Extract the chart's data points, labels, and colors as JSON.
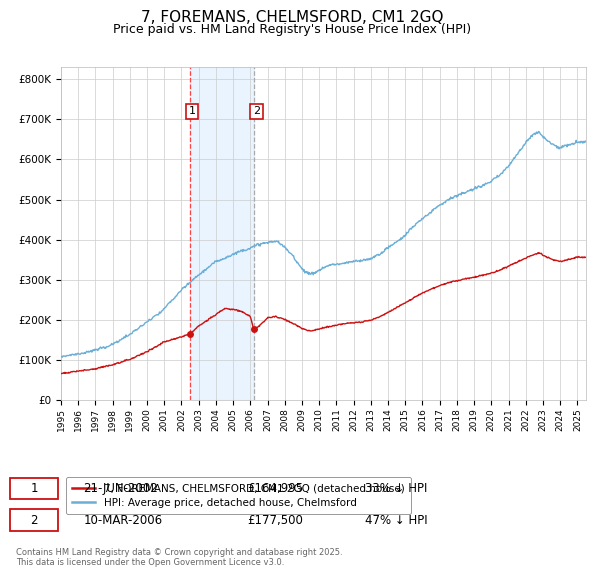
{
  "title": "7, FOREMANS, CHELMSFORD, CM1 2GQ",
  "subtitle": "Price paid vs. HM Land Registry's House Price Index (HPI)",
  "title_fontsize": 11,
  "subtitle_fontsize": 9,
  "ylabel_ticks": [
    "£0",
    "£100K",
    "£200K",
    "£300K",
    "£400K",
    "£500K",
    "£600K",
    "£700K",
    "£800K"
  ],
  "ytick_values": [
    0,
    100000,
    200000,
    300000,
    400000,
    500000,
    600000,
    700000,
    800000
  ],
  "ylim": [
    0,
    830000
  ],
  "xlim_start": 1995.0,
  "xlim_end": 2025.5,
  "xticks": [
    1995,
    1996,
    1997,
    1998,
    1999,
    2000,
    2001,
    2002,
    2003,
    2004,
    2005,
    2006,
    2007,
    2008,
    2009,
    2010,
    2011,
    2012,
    2013,
    2014,
    2015,
    2016,
    2017,
    2018,
    2019,
    2020,
    2021,
    2022,
    2023,
    2024,
    2025
  ],
  "hpi_color": "#6baed6",
  "price_color": "#cc1111",
  "background_color": "#ffffff",
  "grid_color": "#cccccc",
  "purchase1_x": 2002.47,
  "purchase1_y": 164995,
  "purchase2_x": 2006.19,
  "purchase2_y": 177500,
  "vline1_color": "#ff4444",
  "vline2_color": "#aaaaaa",
  "vshade_color": "#ddeeff",
  "legend_line1": "7, FOREMANS, CHELMSFORD, CM1 2GQ (detached house)",
  "legend_line2": "HPI: Average price, detached house, Chelmsford",
  "purchase1_date": "21-JUN-2002",
  "purchase1_price": "£164,995",
  "purchase1_pct": "33% ↓ HPI",
  "purchase2_date": "10-MAR-2006",
  "purchase2_price": "£177,500",
  "purchase2_pct": "47% ↓ HPI",
  "footnote": "Contains HM Land Registry data © Crown copyright and database right 2025.\nThis data is licensed under the Open Government Licence v3.0.",
  "annotation_box_color": "#cc1111"
}
